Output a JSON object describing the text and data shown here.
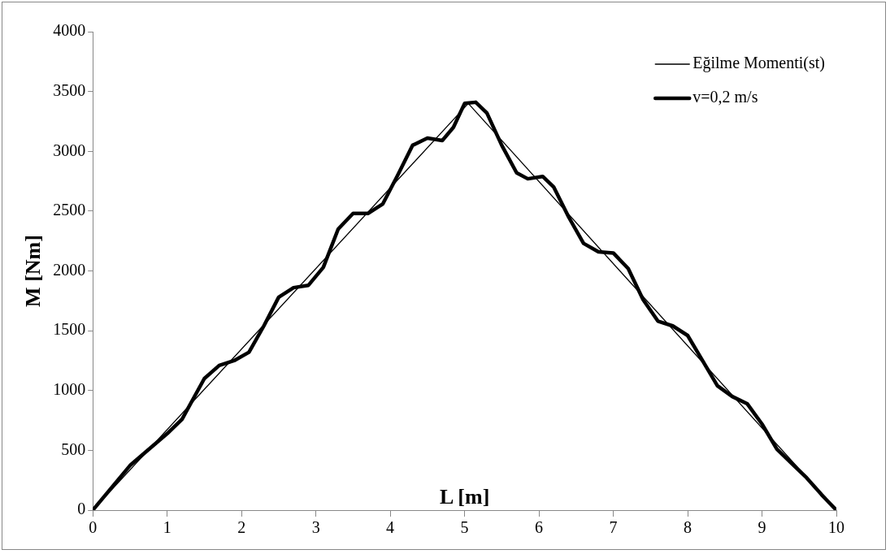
{
  "chart_data": {
    "type": "line",
    "xlabel": "L [m]",
    "ylabel": "M [Nm]",
    "xlim": [
      0,
      10
    ],
    "xticks": [
      0,
      1,
      2,
      3,
      4,
      5,
      6,
      7,
      8,
      9,
      10
    ],
    "ylim": [
      0,
      4000
    ],
    "yticks": [
      0,
      500,
      1000,
      1500,
      2000,
      2500,
      3000,
      3500,
      4000
    ],
    "grid": false,
    "legend": "top right",
    "marker": "none",
    "line_style": "solid",
    "series": [
      {
        "name": "Eğilme Momenti(st)",
        "color": "#000000",
        "x": [
          0,
          5.05,
          10
        ],
        "values": [
          0,
          3400,
          0
        ]
      },
      {
        "name": "v=0,2 m/s",
        "color": "#000000",
        "x": [
          0,
          0.5,
          1,
          1.2,
          1.5,
          1.7,
          1.9,
          2.1,
          2.3,
          2.5,
          2.7,
          2.9,
          3.1,
          3.3,
          3.5,
          3.7,
          3.9,
          4.1,
          4.3,
          4.5,
          4.7,
          4.85,
          5,
          5.15,
          5.3,
          5.5,
          5.7,
          5.85,
          6.05,
          6.2,
          6.4,
          6.6,
          6.8,
          7,
          7.2,
          7.4,
          7.6,
          7.8,
          8,
          8.2,
          8.4,
          8.6,
          8.8,
          9,
          9.2,
          9.4,
          9.6,
          9.8,
          10
        ],
        "values": [
          0,
          373,
          640,
          760,
          1100,
          1210,
          1250,
          1320,
          1540,
          1780,
          1860,
          1880,
          2030,
          2350,
          2480,
          2480,
          2560,
          2800,
          3050,
          3110,
          3090,
          3200,
          3400,
          3410,
          3320,
          3050,
          2820,
          2770,
          2790,
          2700,
          2450,
          2230,
          2160,
          2150,
          2020,
          1760,
          1580,
          1540,
          1460,
          1250,
          1040,
          950,
          890,
          720,
          510,
          390,
          270,
          130,
          0
        ]
      }
    ]
  }
}
